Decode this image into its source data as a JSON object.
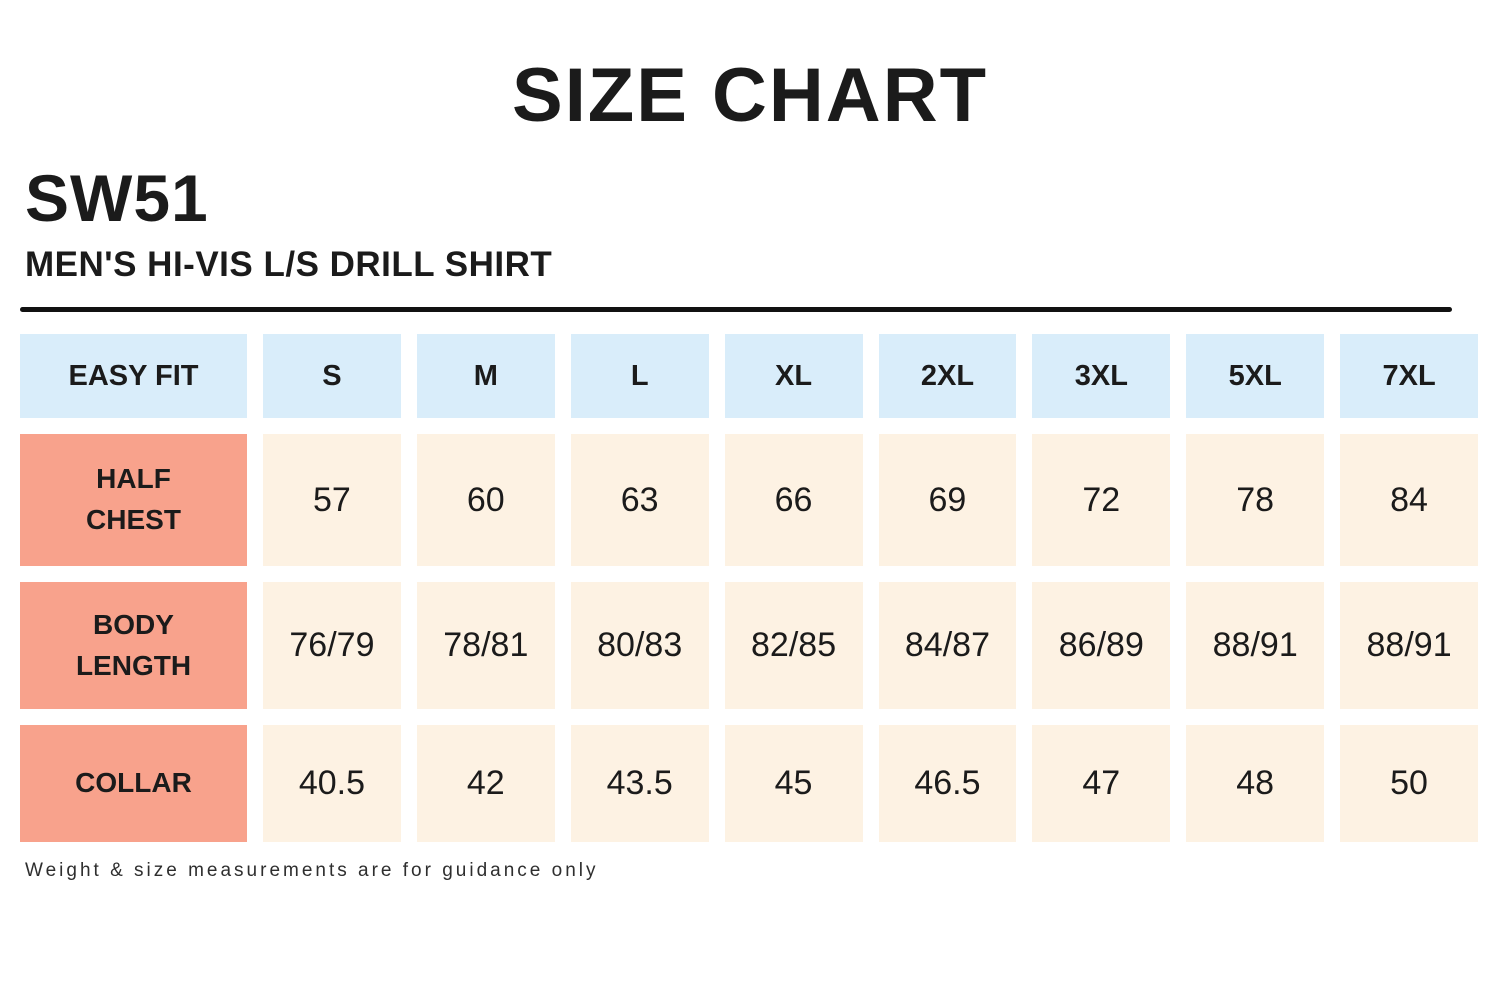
{
  "page": {
    "title": "SIZE CHART",
    "product_code": "SW51",
    "product_name": "MEN'S HI-VIS L/S DRILL SHIRT",
    "footnote": "Weight & size measurements are for guidance only"
  },
  "colors": {
    "header_bg": "#d9edfa",
    "label_bg": "#f8a28c",
    "value_bg": "#fdf2e3",
    "text": "#1b1b1b",
    "line": "#111111"
  },
  "chart_data": {
    "type": "table",
    "fit_label": "EASY FIT",
    "columns": [
      "S",
      "M",
      "L",
      "XL",
      "2XL",
      "3XL",
      "5XL",
      "7XL"
    ],
    "rows": [
      {
        "label": "HALF CHEST",
        "values": [
          "57",
          "60",
          "63",
          "66",
          "69",
          "72",
          "78",
          "84"
        ]
      },
      {
        "label": "BODY LENGTH",
        "values": [
          "76/79",
          "78/81",
          "80/83",
          "82/85",
          "84/87",
          "86/89",
          "88/91",
          "88/91"
        ]
      },
      {
        "label": "COLLAR",
        "values": [
          "40.5",
          "42",
          "43.5",
          "45",
          "46.5",
          "47",
          "48",
          "50"
        ]
      }
    ],
    "title": "SIZE CHART",
    "notes": "Weight & size measurements are for guidance only"
  }
}
